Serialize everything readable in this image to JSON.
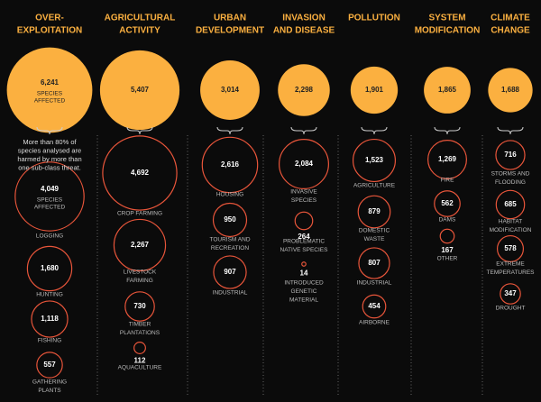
{
  "chart_data": {
    "type": "bubble",
    "color": "#fbb040",
    "sub_color": "#e8553a",
    "note_lines": [
      "More than 80% of",
      "species analysed are",
      "harmed by more than",
      "one sub-class threat."
    ],
    "groups": [
      {
        "title_lines": [
          "OVER-",
          "EXPLOITATION"
        ],
        "value": 6241,
        "value_label": "6,241",
        "value_caption": [
          "SPECIES",
          "AFFECTED"
        ],
        "subs": [
          {
            "value": 4049,
            "value_label": "4,049",
            "caption": [
              "SPECIES",
              "AFFECTED"
            ],
            "label_lines": [
              "LOGGING"
            ]
          },
          {
            "value": 1680,
            "value_label": "1,680",
            "label_lines": [
              "HUNTING"
            ]
          },
          {
            "value": 1118,
            "value_label": "1,118",
            "label_lines": [
              "FISHING"
            ]
          },
          {
            "value": 557,
            "label_lines": [
              "GATHERING",
              "PLANTS"
            ]
          }
        ]
      },
      {
        "title_lines": [
          "AGRICULTURAL",
          "ACTIVITY"
        ],
        "value": 5407,
        "value_label": "5,407",
        "subs": [
          {
            "value": 4692,
            "value_label": "4,692",
            "label_lines": [
              "CROP FARMING"
            ]
          },
          {
            "value": 2267,
            "value_label": "2,267",
            "label_lines": [
              "LIVESTOCK",
              "FARMING"
            ]
          },
          {
            "value": 730,
            "label_lines": [
              "TIMBER",
              "PLANTATIONS"
            ]
          },
          {
            "value": 112,
            "label_lines": [
              "AQUACULTURE"
            ]
          }
        ]
      },
      {
        "title_lines": [
          "URBAN",
          "DEVELOPMENT"
        ],
        "value": 3014,
        "value_label": "3,014",
        "subs": [
          {
            "value": 2616,
            "value_label": "2,616",
            "label_lines": [
              "HOUSING"
            ]
          },
          {
            "value": 950,
            "label_lines": [
              "TOURISM AND",
              "RECREATION"
            ]
          },
          {
            "value": 907,
            "label_lines": [
              "INDUSTRIAL"
            ]
          }
        ]
      },
      {
        "title_lines": [
          "INVASION",
          "AND DISEASE"
        ],
        "value": 2298,
        "value_label": "2,298",
        "subs": [
          {
            "value": 2084,
            "value_label": "2,084",
            "label_lines": [
              "INVASIVE",
              "SPECIES"
            ]
          },
          {
            "value": 264,
            "label_lines": [
              "PROBLEMATIC",
              "NATIVE SPECIES"
            ]
          },
          {
            "value": 14,
            "label_lines": [
              "INTRODUCED",
              "GENETIC",
              "MATERIAL"
            ]
          }
        ]
      },
      {
        "title_lines": [
          "POLLUTION"
        ],
        "value": 1901,
        "value_label": "1,901",
        "subs": [
          {
            "value": 1523,
            "value_label": "1,523",
            "label_lines": [
              "AGRICULTURE"
            ]
          },
          {
            "value": 879,
            "label_lines": [
              "DOMESTIC",
              "WASTE"
            ]
          },
          {
            "value": 807,
            "label_lines": [
              "INDUSTRIAL"
            ]
          },
          {
            "value": 454,
            "label_lines": [
              "AIRBORNE"
            ]
          }
        ]
      },
      {
        "title_lines": [
          "SYSTEM",
          "MODIFICATION"
        ],
        "value": 1865,
        "value_label": "1,865",
        "subs": [
          {
            "value": 1269,
            "value_label": "1,269",
            "label_lines": [
              "FIRE"
            ]
          },
          {
            "value": 562,
            "label_lines": [
              "DAMS"
            ]
          },
          {
            "value": 167,
            "label_lines": [
              "OTHER"
            ]
          }
        ]
      },
      {
        "title_lines": [
          "CLIMATE",
          "CHANGE"
        ],
        "value": 1688,
        "value_label": "1,688",
        "subs": [
          {
            "value": 716,
            "label_lines": [
              "STORMS AND",
              "FLOODING"
            ]
          },
          {
            "value": 685,
            "label_lines": [
              "HABITAT",
              "MODIFICATION"
            ]
          },
          {
            "value": 578,
            "label_lines": [
              "EXTREME",
              "TEMPERATURES"
            ]
          },
          {
            "value": 347,
            "label_lines": [
              "DROUGHT"
            ]
          }
        ]
      }
    ]
  }
}
